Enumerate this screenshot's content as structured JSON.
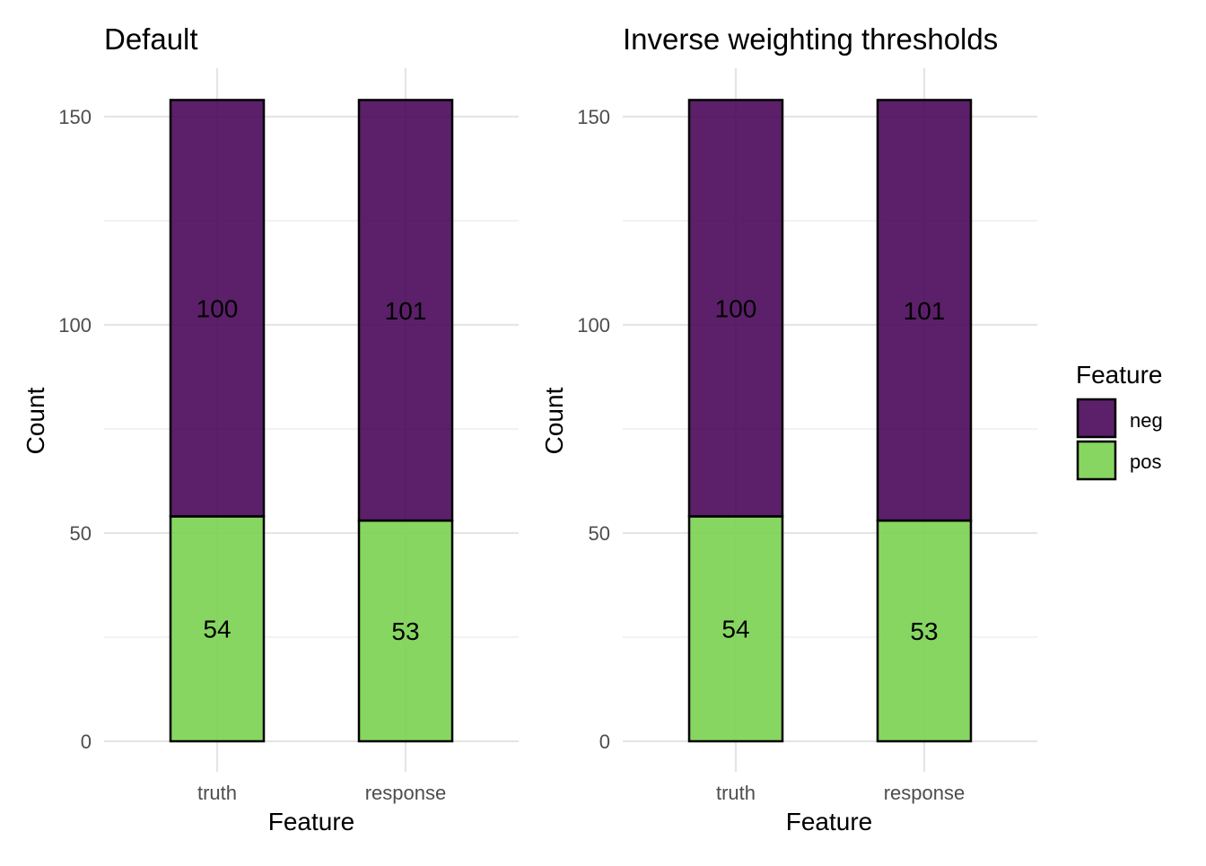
{
  "chart_data": [
    {
      "type": "bar",
      "stacked": true,
      "title": "Default",
      "xlabel": "Feature",
      "ylabel": "Count",
      "categories": [
        "truth",
        "response"
      ],
      "ylim": [
        0,
        155
      ],
      "yticks": [
        0,
        50,
        100,
        150
      ],
      "series": [
        {
          "name": "pos",
          "values": [
            54,
            53
          ]
        },
        {
          "name": "neg",
          "values": [
            100,
            101
          ]
        }
      ]
    },
    {
      "type": "bar",
      "stacked": true,
      "title": "Inverse weighting thresholds",
      "xlabel": "Feature",
      "ylabel": "Count",
      "categories": [
        "truth",
        "response"
      ],
      "ylim": [
        0,
        155
      ],
      "yticks": [
        0,
        50,
        100,
        150
      ],
      "series": [
        {
          "name": "pos",
          "values": [
            54,
            53
          ]
        },
        {
          "name": "neg",
          "values": [
            100,
            101
          ]
        }
      ]
    }
  ],
  "legend": {
    "title": "Feature",
    "position": "right",
    "items": [
      {
        "name": "neg",
        "color": "#440154"
      },
      {
        "name": "pos",
        "color": "#7AD151"
      }
    ]
  }
}
